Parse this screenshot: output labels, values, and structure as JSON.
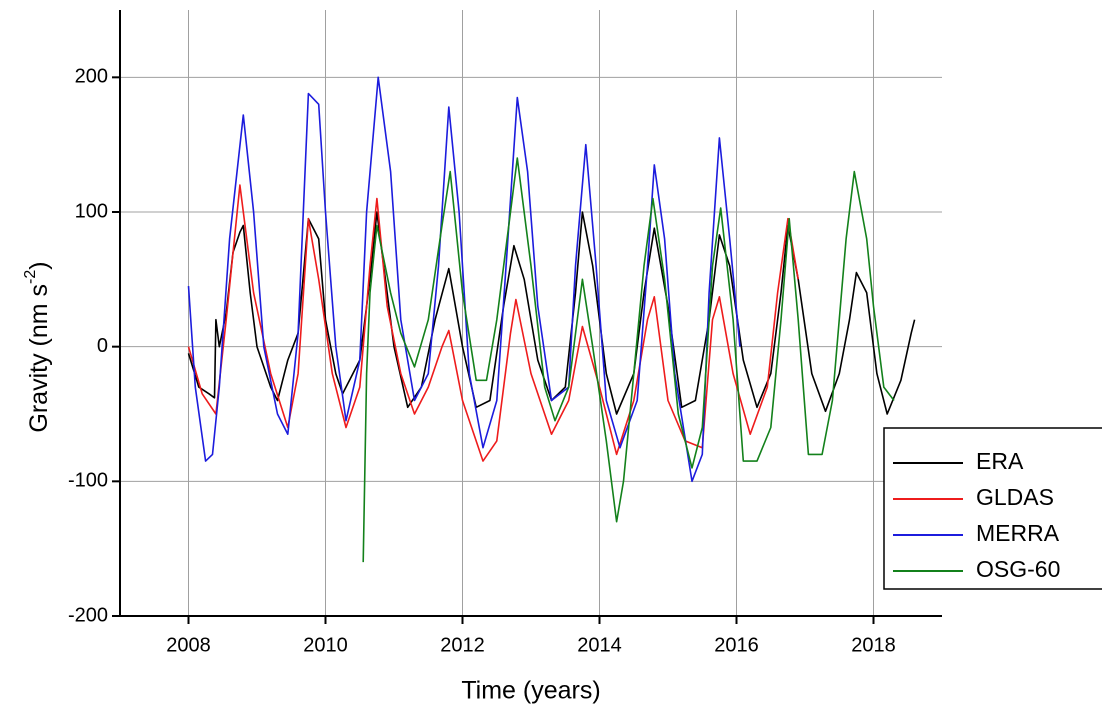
{
  "chart_data": {
    "type": "line",
    "x_label": "Time (years)",
    "y_label_main": "Gravity (nm s",
    "y_label_sup": "-2",
    "y_label_end": ")",
    "xlim": [
      2007,
      2019
    ],
    "xticks": [
      2008,
      2010,
      2012,
      2014,
      2016,
      2018
    ],
    "ylim": [
      -200,
      250
    ],
    "yticks": [
      -200,
      -100,
      0,
      100,
      200
    ],
    "grid": true,
    "legend": "lower right",
    "series": [
      {
        "name": "ERA",
        "color": "#000000",
        "x": [
          2008.0,
          2008.15,
          2008.3,
          2008.38,
          2008.4,
          2008.45,
          2008.55,
          2008.65,
          2008.75,
          2008.8,
          2008.9,
          2009.0,
          2009.2,
          2009.3,
          2009.45,
          2009.6,
          2009.75,
          2009.9,
          2010.0,
          2010.15,
          2010.25,
          2010.5,
          2010.65,
          2010.75,
          2010.85,
          2011.0,
          2011.2,
          2011.4,
          2011.6,
          2011.8,
          2012.0,
          2012.2,
          2012.4,
          2012.6,
          2012.75,
          2012.9,
          2013.1,
          2013.3,
          2013.5,
          2013.65,
          2013.75,
          2013.9,
          2014.1,
          2014.25,
          2014.5,
          2014.65,
          2014.8,
          2015.0,
          2015.2,
          2015.4,
          2015.6,
          2015.75,
          2015.9,
          2016.1,
          2016.3,
          2016.5,
          2016.65,
          2016.75,
          2016.9,
          2017.1,
          2017.3,
          2017.5,
          2017.65,
          2017.75,
          2017.9,
          2018.05,
          2018.2,
          2018.4,
          2018.55,
          2018.6
        ],
        "values": [
          -5,
          -30,
          -35,
          -38,
          20,
          0,
          25,
          70,
          85,
          90,
          40,
          0,
          -30,
          -40,
          -10,
          10,
          95,
          80,
          20,
          -20,
          -35,
          -10,
          50,
          100,
          60,
          0,
          -45,
          -30,
          20,
          58,
          0,
          -45,
          -40,
          30,
          75,
          50,
          -10,
          -40,
          -30,
          40,
          100,
          60,
          -20,
          -50,
          -20,
          40,
          88,
          30,
          -45,
          -40,
          20,
          83,
          60,
          -10,
          -45,
          -20,
          40,
          90,
          50,
          -20,
          -48,
          -20,
          20,
          55,
          40,
          -20,
          -50,
          -25,
          10,
          20
        ]
      },
      {
        "name": "GLDAS",
        "color": "#ee1c1c",
        "x": [
          2008.0,
          2008.2,
          2008.4,
          2008.55,
          2008.75,
          2008.95,
          2009.2,
          2009.45,
          2009.6,
          2009.75,
          2009.9,
          2010.1,
          2010.3,
          2010.5,
          2010.65,
          2010.75,
          2010.9,
          2011.1,
          2011.3,
          2011.5,
          2011.7,
          2011.8,
          2012.0,
          2012.3,
          2012.5,
          2012.7,
          2012.78,
          2013.0,
          2013.3,
          2013.55,
          2013.75,
          2014.0,
          2014.25,
          2014.5,
          2014.7,
          2014.8,
          2015.0,
          2015.25,
          2015.5,
          2015.65,
          2015.75,
          2015.95,
          2016.2,
          2016.45,
          2016.6,
          2016.75,
          2016.9
        ],
        "values": [
          0,
          -35,
          -50,
          20,
          120,
          40,
          -20,
          -60,
          -20,
          95,
          50,
          -20,
          -60,
          -30,
          60,
          110,
          30,
          -20,
          -50,
          -30,
          0,
          12,
          -40,
          -85,
          -70,
          10,
          35,
          -20,
          -65,
          -40,
          15,
          -30,
          -80,
          -40,
          20,
          37,
          -40,
          -70,
          -75,
          20,
          37,
          -20,
          -65,
          -30,
          40,
          95,
          50
        ]
      },
      {
        "name": "MERRA",
        "color": "#1c1cdd",
        "x": [
          2008.0,
          2008.1,
          2008.25,
          2008.35,
          2008.45,
          2008.6,
          2008.8,
          2008.95,
          2009.1,
          2009.3,
          2009.45,
          2009.6,
          2009.75,
          2009.9,
          2010.0,
          2010.15,
          2010.3,
          2010.5,
          2010.6,
          2010.77,
          2010.95,
          2011.1,
          2011.3,
          2011.5,
          2011.65,
          2011.8,
          2011.95,
          2012.1,
          2012.3,
          2012.5,
          2012.65,
          2012.8,
          2012.95,
          2013.1,
          2013.3,
          2013.55,
          2013.65,
          2013.8,
          2013.95,
          2014.1,
          2014.3,
          2014.55,
          2014.7,
          2014.8,
          2014.95,
          2015.1,
          2015.35,
          2015.5,
          2015.6,
          2015.75,
          2015.9,
          2016.05
        ],
        "values": [
          45,
          -30,
          -85,
          -80,
          -30,
          80,
          172,
          100,
          0,
          -50,
          -65,
          10,
          188,
          180,
          100,
          0,
          -55,
          -10,
          100,
          200,
          130,
          20,
          -40,
          -20,
          60,
          178,
          100,
          -20,
          -75,
          -40,
          70,
          185,
          130,
          30,
          -40,
          -30,
          60,
          150,
          60,
          -40,
          -75,
          -40,
          60,
          135,
          80,
          -20,
          -100,
          -80,
          40,
          155,
          80,
          0
        ]
      },
      {
        "name": "OSG-60",
        "color": "#13811b",
        "x": [
          2010.55,
          2010.6,
          2010.65,
          2010.75,
          2010.95,
          2011.1,
          2011.3,
          2011.5,
          2011.7,
          2011.82,
          2012.0,
          2012.2,
          2012.35,
          2012.5,
          2012.7,
          2012.8,
          2013.0,
          2013.2,
          2013.35,
          2013.55,
          2013.75,
          2013.9,
          2014.1,
          2014.25,
          2014.35,
          2014.5,
          2014.65,
          2014.78,
          2014.95,
          2015.15,
          2015.35,
          2015.5,
          2015.65,
          2015.77,
          2015.95,
          2016.1,
          2016.3,
          2016.5,
          2016.65,
          2016.77,
          2016.9,
          2017.05,
          2017.25,
          2017.4,
          2017.6,
          2017.72,
          2017.9,
          2018.0,
          2018.15,
          2018.3
        ],
        "values": [
          -160,
          -20,
          40,
          90,
          40,
          10,
          -15,
          20,
          90,
          130,
          40,
          -25,
          -25,
          20,
          100,
          140,
          60,
          -30,
          -55,
          -30,
          50,
          0,
          -70,
          -130,
          -100,
          -20,
          60,
          110,
          50,
          -50,
          -90,
          -60,
          60,
          103,
          20,
          -85,
          -85,
          -60,
          20,
          95,
          20,
          -80,
          -80,
          -40,
          80,
          130,
          80,
          30,
          -30,
          -40
        ]
      }
    ]
  }
}
